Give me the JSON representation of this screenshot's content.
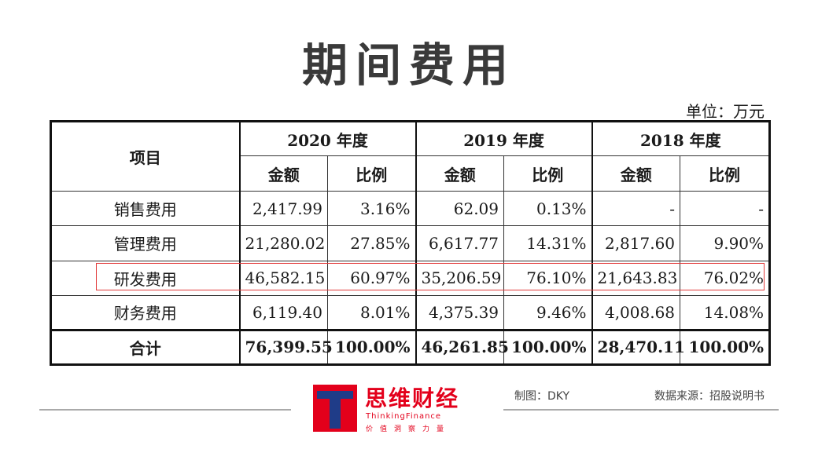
{
  "title": "期间费用",
  "unit": "单位：万元",
  "table": {
    "item_header": "项目",
    "years": [
      "2020 年度",
      "2019 年度",
      "2018 年度"
    ],
    "sub_headers": [
      "金额",
      "比例"
    ],
    "rows": [
      {
        "label": "销售费用",
        "cells": [
          "2,417.99",
          "3.16%",
          "62.09",
          "0.13%",
          "-",
          "-"
        ]
      },
      {
        "label": "管理费用",
        "cells": [
          "21,280.02",
          "27.85%",
          "6,617.77",
          "14.31%",
          "2,817.60",
          "9.90%"
        ]
      },
      {
        "label": "研发费用",
        "cells": [
          "46,582.15",
          "60.97%",
          "35,206.59",
          "76.10%",
          "21,643.83",
          "76.02%"
        ]
      },
      {
        "label": "财务费用",
        "cells": [
          "6,119.40",
          "8.01%",
          "4,375.39",
          "9.46%",
          "4,008.68",
          "14.08%"
        ]
      }
    ],
    "total": {
      "label": "合计",
      "cells": [
        "76,399.55",
        "100.00%",
        "46,261.85",
        "100.00%",
        "28,470.11",
        "100.00%"
      ]
    }
  },
  "highlight_color": "#e23b3b",
  "footer": {
    "brand_cn": "思维财经",
    "brand_en": "ThinkingFinance",
    "brand_cn_small": "价值洞察力量",
    "maker": "制图：DKY",
    "source": "数据来源：招股说明书",
    "brand_color": "#e3001b",
    "logo_icon": "t-letter-logo-icon"
  }
}
